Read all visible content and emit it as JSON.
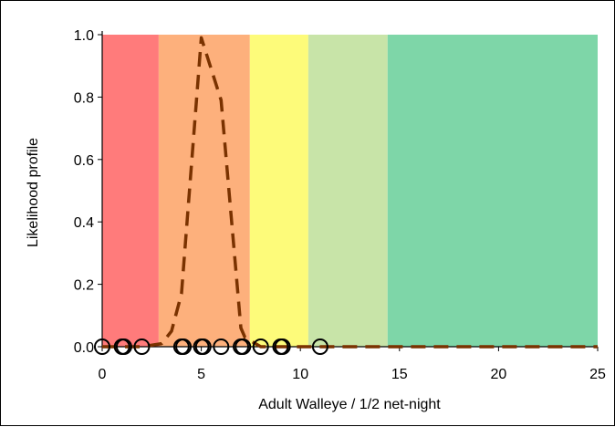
{
  "chart_data": {
    "type": "line",
    "title": "",
    "xlabel": "Adult Walleye / 1/2 net-night",
    "ylabel": "Likelihood profile",
    "xlim": [
      0,
      25
    ],
    "ylim": [
      0,
      1
    ],
    "x_ticks": [
      0,
      5,
      10,
      15,
      20,
      25
    ],
    "y_ticks": [
      {
        "value": 0.0,
        "label": "0.0"
      },
      {
        "value": 0.2,
        "label": "0.2"
      },
      {
        "value": 0.4,
        "label": "0.4"
      },
      {
        "value": 0.6,
        "label": "0.6"
      },
      {
        "value": 0.8,
        "label": "0.8"
      },
      {
        "value": 1.0,
        "label": "1.0"
      }
    ],
    "grid": false,
    "bands": [
      {
        "x0": 0,
        "x1": 2.85,
        "color": "#ff7b7b"
      },
      {
        "x0": 2.85,
        "x1": 7.45,
        "color": "#fdb07c"
      },
      {
        "x0": 7.45,
        "x1": 10.4,
        "color": "#fdfb7a"
      },
      {
        "x0": 10.4,
        "x1": 14.4,
        "color": "#c8e4a8"
      },
      {
        "x0": 14.4,
        "x1": 25,
        "color": "#7ed6a8"
      }
    ],
    "series": [
      {
        "style": "dashed",
        "color": "#7a3200",
        "x": [
          0,
          1,
          2,
          3,
          3.5,
          4,
          5,
          6,
          7,
          7.2,
          8,
          9,
          10,
          11,
          12,
          13,
          14,
          15,
          16,
          17,
          18,
          19,
          20,
          21,
          22,
          23,
          24,
          25
        ],
        "y": [
          0,
          0,
          0,
          0.01,
          0.05,
          0.17,
          0.99,
          0.79,
          0.06,
          0.03,
          0,
          0,
          0,
          0,
          0,
          0,
          0,
          0,
          0,
          0,
          0,
          0,
          0,
          0,
          0,
          0,
          0,
          0
        ]
      }
    ],
    "observations": {
      "marker": "open-circle",
      "x": [
        0,
        1,
        1.1,
        2,
        4,
        4.1,
        5,
        5.1,
        6,
        7,
        7.1,
        8,
        9,
        9.1,
        11
      ],
      "y": [
        0,
        0,
        0,
        0,
        0,
        0,
        0,
        0,
        0,
        0,
        0,
        0,
        0,
        0,
        0
      ]
    }
  }
}
